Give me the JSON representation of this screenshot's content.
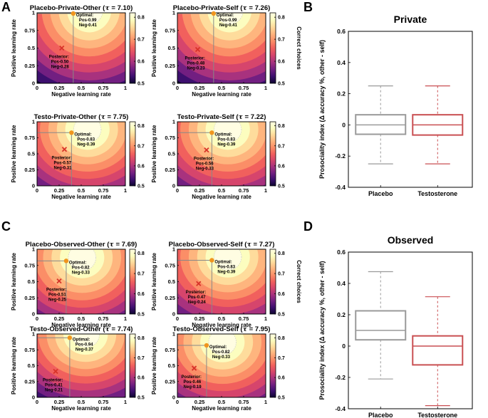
{
  "panel_labels": [
    "A",
    "B",
    "C",
    "D"
  ],
  "colors": {
    "optimal": "#f0961e",
    "posterior": "#d8332a",
    "placebo": "#9a9a9a",
    "testosterone": "#c94f52",
    "colormap": [
      "#0d0630",
      "#3d0f6e",
      "#721f81",
      "#a8327e",
      "#d6456c",
      "#f1605d",
      "#fb8e67",
      "#feb57e",
      "#fedc9c",
      "#fcfdbf",
      "#fffde2"
    ]
  },
  "chart_data": [
    {
      "type": "heatmap",
      "panel": "A",
      "title": "Placebo-Private-Other",
      "tau": "7.10",
      "xlabel": "Negative learning rate",
      "ylabel": "Positive learning rate",
      "xticks": [
        "0",
        "0.25",
        "0.5",
        "0.75",
        "1"
      ],
      "yticks": [
        "0",
        "0.25",
        "0.5",
        "0.75",
        "1"
      ],
      "optimal": {
        "label": "Optimal:",
        "pos_text": "Pos-0.99",
        "neg_text": "Neg-0.41",
        "pos": 0.99,
        "neg": 0.41
      },
      "posterior": {
        "label": "Posterior:",
        "pos_text": "Pos-0.50",
        "neg_text": "Neg-0.28",
        "pos": 0.5,
        "neg": 0.28
      },
      "colorbar": {
        "label": "",
        "ticks": [
          "0.5",
          "0.6",
          "0.7",
          "0.8"
        ],
        "range": [
          0.5,
          0.82
        ]
      }
    },
    {
      "type": "heatmap",
      "panel": "A",
      "title": "Placebo-Private-Self",
      "tau": "7.26",
      "xlabel": "Negative learning rate",
      "ylabel": "Positive learning rate",
      "xticks": [
        "0",
        "0.25",
        "0.5",
        "0.75",
        "1"
      ],
      "yticks": [
        "0",
        "0.25",
        "0.5",
        "0.75",
        "1"
      ],
      "optimal": {
        "label": "Optimal:",
        "pos_text": "Pos-0.99",
        "neg_text": "Neg-0.41",
        "pos": 0.99,
        "neg": 0.41
      },
      "posterior": {
        "label": "Posterior:",
        "pos_text": "Pos-0.48",
        "neg_text": "Neg-0.23",
        "pos": 0.48,
        "neg": 0.23
      },
      "colorbar": {
        "label": "Correct choices",
        "ticks": [
          "0.5",
          "0.6",
          "0.7",
          "0.8"
        ],
        "range": [
          0.5,
          0.82
        ]
      }
    },
    {
      "type": "heatmap",
      "panel": "A",
      "title": "Testo-Private-Other",
      "tau": "7.75",
      "xlabel": "Negative learning rate",
      "ylabel": "Positive learning rate",
      "xticks": [
        "0",
        "0.25",
        "0.5",
        "0.75",
        "1"
      ],
      "yticks": [
        "0",
        "0.25",
        "0.5",
        "0.75",
        "1"
      ],
      "optimal": {
        "label": "Optimal:",
        "pos_text": "Pos-0.83",
        "neg_text": "Neg-0.39",
        "pos": 0.83,
        "neg": 0.39
      },
      "posterior": {
        "label": "Posterior:",
        "pos_text": "Pos-0.57",
        "neg_text": "Neg-0.31",
        "pos": 0.57,
        "neg": 0.31
      },
      "colorbar": {
        "label": "",
        "ticks": [
          "0.5",
          "0.6",
          "0.7",
          "0.8"
        ],
        "range": [
          0.5,
          0.82
        ]
      }
    },
    {
      "type": "heatmap",
      "panel": "A",
      "title": "Testo-Private-Self",
      "tau": "7.22",
      "xlabel": "Negative learning rate",
      "ylabel": "Positive learning rate",
      "xticks": [
        "0",
        "0.25",
        "0.5",
        "0.75",
        "1"
      ],
      "yticks": [
        "0",
        "0.25",
        "0.5",
        "0.75",
        "1"
      ],
      "optimal": {
        "label": "Optimal:",
        "pos_text": "Pos-0.83",
        "neg_text": "Neg-0.39",
        "pos": 0.83,
        "neg": 0.39
      },
      "posterior": {
        "label": "Posterior:",
        "pos_text": "Pos-0.56",
        "neg_text": "Neg-0.33",
        "pos": 0.56,
        "neg": 0.33
      },
      "colorbar": {
        "label": "",
        "ticks": [
          "0.5",
          "0.6",
          "0.7",
          "0.8"
        ],
        "range": [
          0.5,
          0.82
        ]
      }
    },
    {
      "type": "heatmap",
      "panel": "C",
      "title": "Placebo-Observed-Other",
      "tau": "7.69",
      "xlabel": "Negative learning rate",
      "ylabel": "Positive learning rate",
      "xticks": [
        "0",
        "0.25",
        "0.5",
        "0.75",
        "1"
      ],
      "yticks": [
        "0",
        "0.25",
        "0.5",
        "0.75",
        "1"
      ],
      "optimal": {
        "label": "Optimal:",
        "pos_text": "Pos-0.82",
        "neg_text": "Neg-0.33",
        "pos": 0.82,
        "neg": 0.33
      },
      "posterior": {
        "label": "Posterior:",
        "pos_text": "Pos-0.51",
        "neg_text": "Neg-0.25",
        "pos": 0.51,
        "neg": 0.25
      },
      "colorbar": {
        "label": "",
        "ticks": [
          "0.5",
          "0.6",
          "0.7",
          "0.8"
        ],
        "range": [
          0.5,
          0.82
        ]
      }
    },
    {
      "type": "heatmap",
      "panel": "C",
      "title": "Placebo-Observed-Self",
      "tau": "7.27",
      "xlabel": "Negative learning rate",
      "ylabel": "Positive learning rate",
      "xticks": [
        "0",
        "0.25",
        "0.5",
        "0.75",
        "1"
      ],
      "yticks": [
        "0",
        "0.25",
        "0.5",
        "0.75",
        "1"
      ],
      "optimal": {
        "label": "Optimal:",
        "pos_text": "Pos-0.83",
        "neg_text": "Neg-0.39",
        "pos": 0.83,
        "neg": 0.39
      },
      "posterior": {
        "label": "Posterior:",
        "pos_text": "Pos-0.47",
        "neg_text": "Neg-0.24",
        "pos": 0.47,
        "neg": 0.24
      },
      "colorbar": {
        "label": "Correct choices",
        "ticks": [
          "0.5",
          "0.6",
          "0.7",
          "0.8"
        ],
        "range": [
          0.5,
          0.82
        ]
      }
    },
    {
      "type": "heatmap",
      "panel": "C",
      "title": "Testo-Observed-Other",
      "tau": "7.74",
      "xlabel": "Negative learning rate",
      "ylabel": "Positive learning rate",
      "xticks": [
        "0",
        "0.25",
        "0.5",
        "0.75",
        "1"
      ],
      "yticks": [
        "0",
        "0.25",
        "0.5",
        "0.75",
        "1"
      ],
      "optimal": {
        "label": "Optimal:",
        "pos_text": "Pos-0.94",
        "neg_text": "Neg-0.37",
        "pos": 0.94,
        "neg": 0.37
      },
      "posterior": {
        "label": "Posterior:",
        "pos_text": "Pos-0.41",
        "neg_text": "Neg-0.21",
        "pos": 0.41,
        "neg": 0.21
      },
      "colorbar": {
        "label": "",
        "ticks": [
          "0.5",
          "0.6",
          "0.7",
          "0.8"
        ],
        "range": [
          0.5,
          0.82
        ]
      }
    },
    {
      "type": "heatmap",
      "panel": "C",
      "title": "Testo-Observed-Self",
      "tau": "7.95",
      "xlabel": "Negative learning rate",
      "ylabel": "Positive learning rate",
      "xticks": [
        "0",
        "0.25",
        "0.5",
        "0.75",
        "1"
      ],
      "yticks": [
        "0",
        "0.25",
        "0.5",
        "0.75",
        "1"
      ],
      "optimal": {
        "label": "Optimal:",
        "pos_text": "Pos-0.82",
        "neg_text": "Neg-0.33",
        "pos": 0.82,
        "neg": 0.33
      },
      "posterior": {
        "label": "Posterior:",
        "pos_text": "Pos-0.46",
        "neg_text": "Neg-0.19",
        "pos": 0.46,
        "neg": 0.19
      },
      "colorbar": {
        "label": "",
        "ticks": [
          "0.5",
          "0.6",
          "0.7",
          "0.8"
        ],
        "range": [
          0.5,
          0.82
        ]
      }
    },
    {
      "type": "box",
      "panel": "B",
      "title": "Private",
      "ylabel": "Prosociality index (Δ accuracy %, other - self)",
      "ylim": [
        -0.4,
        0.6
      ],
      "yticks": [
        "-0.4",
        "-0.2",
        "0",
        "0.2",
        "0.4",
        "0.6"
      ],
      "categories": [
        "Placebo",
        "Testosterone"
      ],
      "series": [
        {
          "name": "Placebo",
          "whisker_low": -0.25,
          "q1": -0.06,
          "median": 0.0,
          "q3": 0.065,
          "whisker_high": 0.25
        },
        {
          "name": "Testosterone",
          "whisker_low": -0.25,
          "q1": -0.065,
          "median": 0.0,
          "q3": 0.065,
          "whisker_high": 0.25
        }
      ]
    },
    {
      "type": "box",
      "panel": "D",
      "title": "Observed",
      "ylabel": "Prosociality index (Δ accuracy %, other - self)",
      "ylim": [
        -0.4,
        0.6
      ],
      "yticks": [
        "-0.4",
        "-0.2",
        "0",
        "0.2",
        "0.4",
        "0.6"
      ],
      "categories": [
        "Placebo",
        "Testosterone"
      ],
      "series": [
        {
          "name": "Placebo",
          "whisker_low": -0.21,
          "q1": 0.04,
          "median": 0.1,
          "q3": 0.225,
          "whisker_high": 0.475
        },
        {
          "name": "Testosterone",
          "whisker_low": -0.38,
          "q1": -0.12,
          "median": 0.0,
          "q3": 0.065,
          "whisker_high": 0.315
        }
      ]
    }
  ]
}
